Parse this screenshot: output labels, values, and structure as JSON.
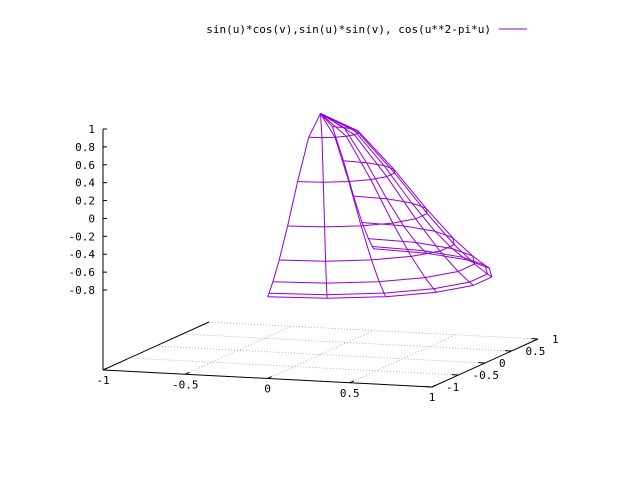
{
  "chart_data": {
    "type": "surface3d",
    "title": "",
    "legend": {
      "label": "sin(u)*cos(v),sin(u)*sin(v), cos(u**2-pi*u)",
      "placement": "top-right",
      "color": "#9400d3"
    },
    "parametric": {
      "x": "sin(u)*cos(v)",
      "y": "sin(u)*sin(v)",
      "z": "cos(u**2-pi*u)",
      "u_range": [
        0,
        1.57
      ],
      "v_range": [
        -1.57,
        1.57
      ],
      "u_samples": 8,
      "v_samples": 10
    },
    "x_axis": {
      "range": [
        -1,
        1
      ],
      "ticks": [
        "-1",
        "-0.5",
        "0",
        "0.5",
        "1"
      ]
    },
    "y_axis": {
      "range": [
        -1,
        1
      ],
      "ticks": [
        "-1",
        "-0.5",
        "0",
        "0.5",
        "1"
      ]
    },
    "z_axis": {
      "range": [
        -0.8,
        1
      ],
      "ticks": [
        "1",
        "0.8",
        "0.6",
        "0.4",
        "0.2",
        "0",
        "-0.2",
        "-0.4",
        "-0.6",
        "-0.8"
      ]
    },
    "grid": true,
    "colors": {
      "surface": "#9400d3",
      "axes": "#000000",
      "grid": "#a0a0a0"
    }
  }
}
